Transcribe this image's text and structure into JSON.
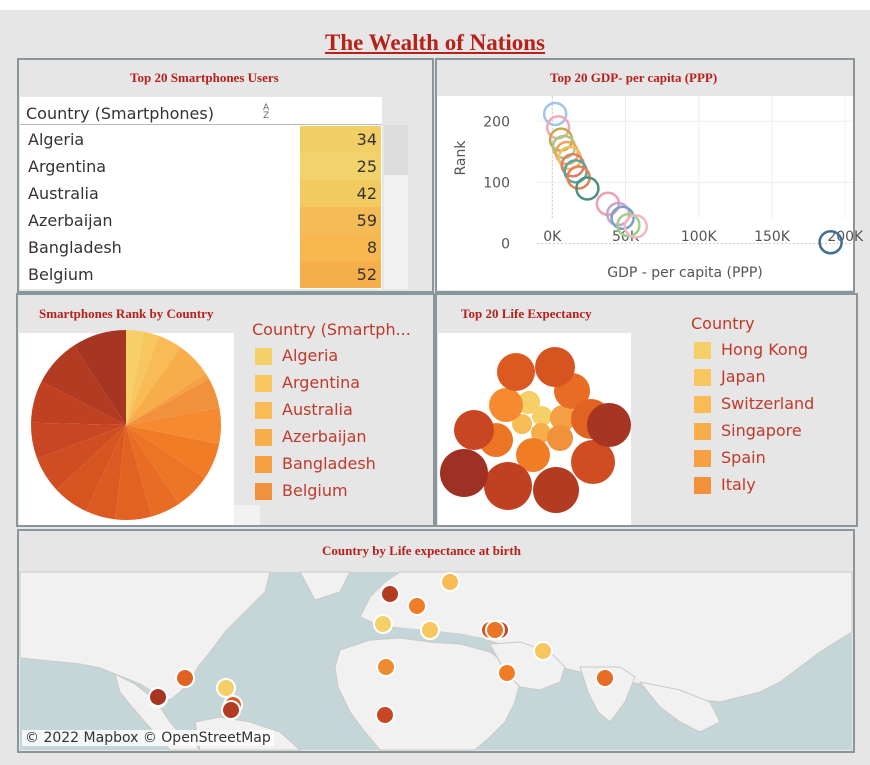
{
  "page": {
    "title": "The Wealth of Nations"
  },
  "smartphones_table": {
    "title": "Top 20 Smartphones Users",
    "column_header": "Country (Smartphones)",
    "rows": [
      {
        "country": "Algeria",
        "value": "34",
        "color": "#f2cf66"
      },
      {
        "country": "Argentina",
        "value": "25",
        "color": "#f2d36b"
      },
      {
        "country": "Australia",
        "value": "42",
        "color": "#f2ca60"
      },
      {
        "country": "Azerbaijan",
        "value": "59",
        "color": "#f5bb56"
      },
      {
        "country": "Bangladesh",
        "value": "8",
        "color": "#f8b74f"
      },
      {
        "country": "Belgium",
        "value": "52",
        "color": "#f6ae4a"
      }
    ]
  },
  "gdp_chart": {
    "title": "Top 20 GDP- per capita (PPP)"
  },
  "chart_data": {
    "type": "scatter",
    "xlabel": "GDP - per capita (PPP)",
    "ylabel": "Rank",
    "xlim": [
      -7000,
      208000
    ],
    "ylim": [
      -45,
      225
    ],
    "x_ticks": [
      "0K",
      "50K",
      "100K",
      "150K",
      "200K"
    ],
    "y_ticks": [
      "0",
      "100",
      "200"
    ],
    "points": [
      {
        "x": 2000,
        "y": 212,
        "color": "#9ec6e8"
      },
      {
        "x": 4000,
        "y": 190,
        "color": "#f2a7b8"
      },
      {
        "x": 6000,
        "y": 170,
        "color": "#c8a94e"
      },
      {
        "x": 8000,
        "y": 158,
        "color": "#a5c97d"
      },
      {
        "x": 10000,
        "y": 148,
        "color": "#f0a35a"
      },
      {
        "x": 12000,
        "y": 140,
        "color": "#e8c36a"
      },
      {
        "x": 14000,
        "y": 128,
        "color": "#d97f6a"
      },
      {
        "x": 16000,
        "y": 118,
        "color": "#5aa3a3"
      },
      {
        "x": 18000,
        "y": 108,
        "color": "#e2824f"
      },
      {
        "x": 24000,
        "y": 90,
        "color": "#4e8f84"
      },
      {
        "x": 38000,
        "y": 65,
        "color": "#e8a0b4"
      },
      {
        "x": 45000,
        "y": 48,
        "color": "#c9a3c9"
      },
      {
        "x": 48000,
        "y": 42,
        "color": "#7a9fc9"
      },
      {
        "x": 52000,
        "y": 30,
        "color": "#9fcf86"
      },
      {
        "x": 57000,
        "y": 28,
        "color": "#f0b7c4"
      },
      {
        "x": 190000,
        "y": 2,
        "color": "#3f6e96"
      }
    ]
  },
  "pie": {
    "title": "Smartphones Rank by Country",
    "legend_title": "Country (Smartph...",
    "legend": [
      {
        "label": "Algeria",
        "color": "#f5cf68"
      },
      {
        "label": "Argentina",
        "color": "#f8c65e"
      },
      {
        "label": "Australia",
        "color": "#f8bb56"
      },
      {
        "label": "Azerbaijan",
        "color": "#f8ad4b"
      },
      {
        "label": "Bangladesh",
        "color": "#f5a043"
      },
      {
        "label": "Belgium",
        "color": "#f2913c"
      }
    ],
    "slices": [
      {
        "value": 3,
        "color": "#f5cf68"
      },
      {
        "value": 2.5,
        "color": "#f8c65e"
      },
      {
        "value": 4,
        "color": "#f8bb56"
      },
      {
        "value": 6,
        "color": "#f8ad4b"
      },
      {
        "value": 1,
        "color": "#f5a043"
      },
      {
        "value": 5,
        "color": "#f2913c"
      },
      {
        "value": 6,
        "color": "#f58a30"
      },
      {
        "value": 6,
        "color": "#f07d26"
      },
      {
        "value": 6,
        "color": "#ec7525"
      },
      {
        "value": 5,
        "color": "#e86c23"
      },
      {
        "value": 6,
        "color": "#e26222"
      },
      {
        "value": 5,
        "color": "#dc5a21"
      },
      {
        "value": 6,
        "color": "#d65420"
      },
      {
        "value": 6,
        "color": "#cf4d21"
      },
      {
        "value": 6,
        "color": "#c84621"
      },
      {
        "value": 7,
        "color": "#c04022"
      },
      {
        "value": 8,
        "color": "#b23b22"
      },
      {
        "value": 9,
        "color": "#a63522"
      }
    ]
  },
  "life": {
    "title": "Top 20 Life Expectancy",
    "legend_title": "Country",
    "legend": [
      {
        "label": "Hong Kong",
        "color": "#f5cf68"
      },
      {
        "label": "Japan",
        "color": "#f8c65e"
      },
      {
        "label": "Switzerland",
        "color": "#f8bb56"
      },
      {
        "label": "Singapore",
        "color": "#f8ad4b"
      },
      {
        "label": "Spain",
        "color": "#f5a043"
      },
      {
        "label": "Italy",
        "color": "#f2913c"
      }
    ],
    "bubbles": [
      {
        "color": "#f8c65e",
        "size": "small"
      },
      {
        "color": "#f5cf68",
        "size": "small"
      },
      {
        "color": "#f8bb56",
        "size": "small"
      },
      {
        "color": "#f8ad4b",
        "size": "small"
      },
      {
        "color": "#f5a043",
        "size": "small"
      },
      {
        "color": "#f5cf68",
        "size": "small"
      },
      {
        "color": "#f2913c",
        "size": "small"
      },
      {
        "color": "#f58a30",
        "size": "medium"
      },
      {
        "color": "#f07d26",
        "size": "medium"
      },
      {
        "color": "#ec7525",
        "size": "medium"
      },
      {
        "color": "#e86c23",
        "size": "medium"
      },
      {
        "color": "#e26222",
        "size": "medium"
      },
      {
        "color": "#dc5a21",
        "size": "large"
      },
      {
        "color": "#d65420",
        "size": "large"
      },
      {
        "color": "#cf4d21",
        "size": "large"
      },
      {
        "color": "#c84621",
        "size": "large"
      },
      {
        "color": "#c04022",
        "size": "large"
      },
      {
        "color": "#b23b22",
        "size": "large"
      },
      {
        "color": "#a63522",
        "size": "large"
      },
      {
        "color": "#9e3124",
        "size": "large"
      }
    ]
  },
  "map": {
    "title": "Country by Life expectance at birth",
    "attribution": "© 2022 Mapbox  © OpenStreetMap",
    "markers": [
      {
        "color": "#b23b22"
      },
      {
        "color": "#f07d26"
      },
      {
        "color": "#f5cf68"
      },
      {
        "color": "#f8c65e"
      },
      {
        "color": "#d65420"
      },
      {
        "color": "#c84621"
      },
      {
        "color": "#f8c65e"
      },
      {
        "color": "#f08a30"
      },
      {
        "color": "#f07d26"
      },
      {
        "color": "#f5cf68"
      },
      {
        "color": "#e26222"
      },
      {
        "color": "#f5cf68"
      },
      {
        "color": "#dc5a21"
      },
      {
        "color": "#b23b22"
      },
      {
        "color": "#e86c23"
      },
      {
        "color": "#f8bb56"
      },
      {
        "color": "#c84621"
      },
      {
        "color": "#ec7525"
      },
      {
        "color": "#a63522"
      }
    ]
  }
}
